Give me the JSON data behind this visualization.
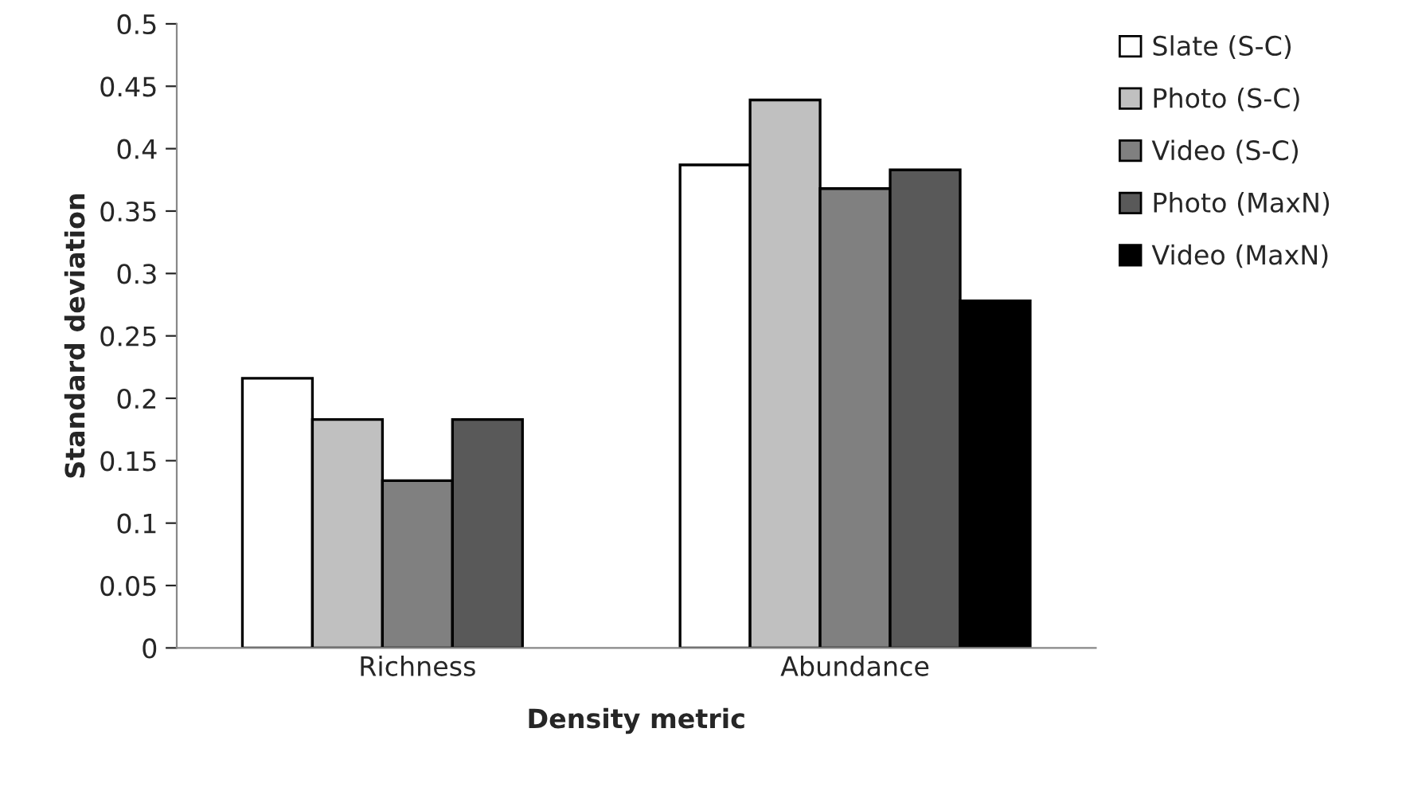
{
  "chart_data": {
    "type": "bar",
    "xlabel": "Density metric",
    "ylabel": "Standard deviation",
    "categories": [
      "Richness",
      "Abundance"
    ],
    "series": [
      {
        "name": "Slate (S-C)",
        "color": "#ffffff",
        "values": [
          0.216,
          0.387
        ]
      },
      {
        "name": "Photo (S-C)",
        "color": "#c0c0c0",
        "values": [
          0.183,
          0.439
        ]
      },
      {
        "name": "Video (S-C)",
        "color": "#808080",
        "values": [
          0.134,
          0.368
        ]
      },
      {
        "name": "Photo (MaxN)",
        "color": "#595959",
        "values": [
          0.183,
          0.383
        ]
      },
      {
        "name": "Video (MaxN)",
        "color": "#000000",
        "values": [
          null,
          0.278
        ]
      }
    ],
    "ylim": [
      0,
      0.5
    ],
    "yticks": [
      0,
      0.05,
      0.1,
      0.15,
      0.2,
      0.25,
      0.3,
      0.35,
      0.4,
      0.45,
      0.5
    ],
    "grid": false,
    "legend": "right"
  }
}
